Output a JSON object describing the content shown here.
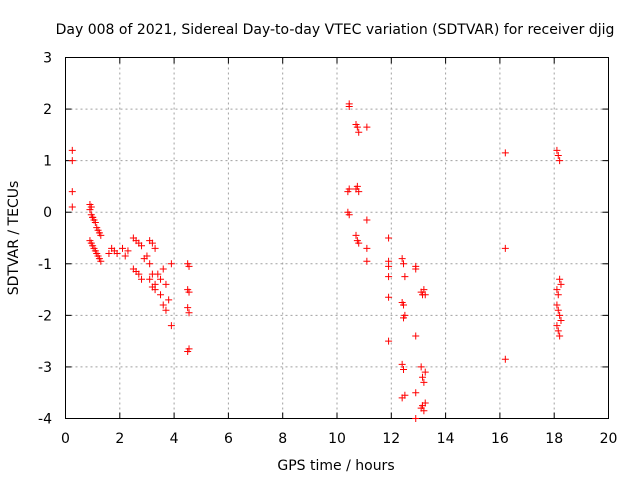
{
  "chart_data": {
    "type": "scatter",
    "title": "Day 008 of 2021, Sidereal Day-to-day VTEC variation (SDTVAR) for receiver djig",
    "xlabel": "GPS time / hours",
    "ylabel": "SDTVAR / TECUs",
    "xlim": [
      0,
      20
    ],
    "ylim": [
      -4,
      3
    ],
    "xticks": [
      0,
      2,
      4,
      6,
      8,
      10,
      12,
      14,
      16,
      18,
      20
    ],
    "yticks": [
      -4,
      -3,
      -2,
      -1,
      0,
      1,
      2,
      3
    ],
    "grid": true,
    "marker": "+",
    "color": "#ff0000",
    "series": [
      {
        "name": "SDTVAR",
        "x": [
          0.25,
          0.25,
          0.25,
          0.25,
          0.9,
          0.95,
          1.0,
          1.05,
          1.1,
          1.15,
          1.2,
          1.25,
          1.3,
          0.9,
          0.95,
          1.0,
          1.05,
          1.1,
          1.15,
          1.2,
          1.25,
          1.3,
          0.9,
          0.95,
          1.0,
          1.6,
          1.7,
          1.8,
          1.9,
          2.1,
          2.2,
          2.3,
          2.5,
          2.6,
          2.7,
          2.8,
          2.5,
          2.6,
          2.7,
          2.8,
          2.9,
          3.0,
          3.1,
          3.2,
          3.3,
          3.1,
          3.2,
          3.3,
          3.1,
          3.2,
          3.3,
          3.4,
          3.5,
          3.6,
          3.7,
          3.5,
          3.6,
          3.7,
          3.8,
          3.9,
          3.9,
          4.5,
          4.55,
          4.5,
          4.55,
          4.5,
          4.55,
          4.5,
          4.55,
          10.45,
          10.45,
          10.4,
          10.45,
          10.4,
          10.45,
          10.7,
          10.75,
          10.8,
          10.7,
          10.75,
          10.8,
          10.7,
          10.75,
          10.8,
          11.1,
          11.1,
          11.1,
          11.1,
          11.9,
          11.9,
          11.9,
          11.9,
          11.9,
          11.9,
          12.4,
          12.45,
          12.5,
          12.4,
          12.45,
          12.5,
          12.4,
          12.45,
          12.5,
          12.4,
          12.45,
          12.9,
          12.9,
          12.9,
          12.9,
          12.9,
          13.1,
          13.15,
          13.2,
          13.25,
          13.1,
          13.15,
          13.2,
          13.25,
          13.1,
          13.15,
          13.2,
          13.25,
          16.2,
          16.2,
          16.2,
          18.1,
          18.15,
          18.2,
          18.1,
          18.15,
          18.2,
          18.25,
          18.1,
          18.15,
          18.2,
          18.25,
          18.1,
          18.15,
          18.2
        ],
        "y": [
          1.2,
          1.0,
          0.4,
          0.1,
          0.15,
          0.1,
          -0.1,
          -0.15,
          -0.2,
          -0.3,
          -0.35,
          -0.4,
          -0.45,
          -0.55,
          -0.6,
          -0.65,
          -0.7,
          -0.75,
          -0.8,
          -0.85,
          -0.9,
          -0.95,
          0.05,
          -0.05,
          -0.1,
          -0.8,
          -0.7,
          -0.75,
          -0.8,
          -0.7,
          -0.85,
          -0.75,
          -0.5,
          -0.55,
          -0.6,
          -0.65,
          -1.1,
          -1.15,
          -1.2,
          -1.3,
          -0.9,
          -0.85,
          -0.55,
          -0.6,
          -0.7,
          -1.0,
          -1.2,
          -1.4,
          -1.3,
          -1.45,
          -1.5,
          -1.2,
          -1.3,
          -1.1,
          -1.4,
          -1.6,
          -1.8,
          -1.9,
          -1.7,
          -1.0,
          -2.2,
          -1.0,
          -1.05,
          -1.5,
          -1.55,
          -1.85,
          -1.95,
          -2.7,
          -2.65,
          2.05,
          2.1,
          0.4,
          0.45,
          0.0,
          -0.05,
          1.7,
          1.65,
          1.55,
          0.45,
          0.5,
          0.4,
          -0.45,
          -0.55,
          -0.6,
          1.65,
          -0.15,
          -0.7,
          -0.95,
          -0.5,
          -0.95,
          -1.25,
          -1.65,
          -1.05,
          -2.5,
          -0.9,
          -1.0,
          -1.25,
          -1.75,
          -1.8,
          -2.0,
          -2.95,
          -3.05,
          -3.55,
          -3.6,
          -2.05,
          -1.05,
          -1.1,
          -2.4,
          -3.5,
          -4.0,
          -1.55,
          -1.6,
          -1.5,
          -1.6,
          -3.0,
          -3.2,
          -3.3,
          -3.7,
          -3.8,
          -3.75,
          -3.85,
          -3.1,
          1.15,
          -0.7,
          -2.85,
          1.2,
          1.1,
          1.0,
          -1.5,
          -1.6,
          -1.3,
          -1.4,
          -1.8,
          -1.9,
          -2.0,
          -2.1,
          -2.2,
          -2.3,
          -2.4
        ]
      }
    ]
  }
}
